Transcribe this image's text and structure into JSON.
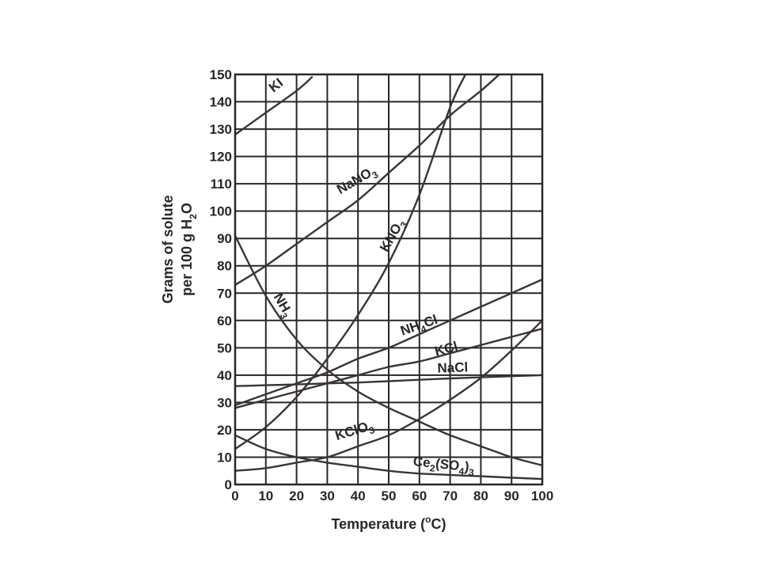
{
  "chart_data": {
    "type": "line",
    "xlabel": "Temperature (°C)",
    "xlabel_parts": {
      "pre": "Temperature (",
      "sup": "o",
      "post": "C)"
    },
    "ylabel_line1": "Grams of solute",
    "ylabel_line2": {
      "pre": "per 100 g H",
      "sub": "2",
      "post": "O"
    },
    "xlim": [
      0,
      100
    ],
    "ylim": [
      0,
      150
    ],
    "x_ticks": [
      0,
      10,
      20,
      30,
      40,
      50,
      60,
      70,
      80,
      90,
      100
    ],
    "y_ticks": [
      0,
      10,
      20,
      30,
      40,
      50,
      60,
      70,
      80,
      90,
      100,
      110,
      120,
      130,
      140,
      150
    ],
    "grid": true,
    "series": [
      {
        "name": "KI",
        "label_parts": [
          {
            "t": "KI"
          }
        ],
        "x": [
          0,
          10,
          20,
          25
        ],
        "y": [
          128,
          136,
          144,
          149
        ]
      },
      {
        "name": "NaNO3",
        "label_parts": [
          {
            "t": "NaNO"
          },
          {
            "t": "3",
            "sub": true
          }
        ],
        "x": [
          0,
          10,
          20,
          30,
          40,
          50,
          60,
          70,
          80,
          86
        ],
        "y": [
          73,
          80,
          88,
          96,
          104,
          114,
          124,
          135,
          144,
          150
        ]
      },
      {
        "name": "KNO3",
        "label_parts": [
          {
            "t": "KNO"
          },
          {
            "t": "3",
            "sub": true
          }
        ],
        "x": [
          0,
          10,
          20,
          30,
          40,
          50,
          60,
          70,
          75
        ],
        "y": [
          13,
          21,
          32,
          46,
          62,
          81,
          106,
          138,
          150
        ]
      },
      {
        "name": "NH3",
        "label_parts": [
          {
            "t": "NH"
          },
          {
            "t": "3",
            "sub": true
          }
        ],
        "x": [
          0,
          10,
          20,
          30,
          40,
          50,
          60,
          70,
          80,
          90,
          100
        ],
        "y": [
          91,
          69,
          53,
          42,
          34,
          28,
          23,
          18,
          14,
          10,
          7
        ]
      },
      {
        "name": "NH4Cl",
        "label_parts": [
          {
            "t": "NH"
          },
          {
            "t": "4",
            "sub": true
          },
          {
            "t": "Cl"
          }
        ],
        "x": [
          0,
          10,
          20,
          30,
          40,
          50,
          60,
          70,
          80,
          90,
          100
        ],
        "y": [
          29,
          33,
          37,
          41,
          46,
          50,
          55,
          60,
          65,
          70,
          75
        ]
      },
      {
        "name": "KCl",
        "label_parts": [
          {
            "t": "KCl"
          }
        ],
        "x": [
          0,
          10,
          20,
          30,
          40,
          50,
          60,
          70,
          80,
          90,
          100
        ],
        "y": [
          28,
          31,
          34,
          37,
          40,
          43,
          45,
          48,
          51,
          54,
          57
        ]
      },
      {
        "name": "NaCl",
        "label_parts": [
          {
            "t": "NaCl"
          }
        ],
        "x": [
          0,
          10,
          20,
          30,
          40,
          50,
          60,
          70,
          80,
          90,
          100
        ],
        "y": [
          36,
          36.3,
          36.6,
          37,
          37.3,
          37.8,
          38.3,
          38.8,
          39.2,
          39.6,
          40
        ]
      },
      {
        "name": "KClO3",
        "label_parts": [
          {
            "t": "KClO"
          },
          {
            "t": "3",
            "sub": true
          }
        ],
        "x": [
          0,
          10,
          20,
          30,
          40,
          50,
          60,
          70,
          80,
          90,
          100
        ],
        "y": [
          5,
          6,
          8,
          10,
          14,
          18,
          24,
          31,
          39,
          49,
          60
        ]
      },
      {
        "name": "Ce2(SO4)3",
        "label_parts": [
          {
            "t": "Ce"
          },
          {
            "t": "2",
            "sub": true
          },
          {
            "t": "(SO"
          },
          {
            "t": "4",
            "sub": true
          },
          {
            "t": ")"
          },
          {
            "t": "3",
            "sub": true
          }
        ],
        "x": [
          0,
          10,
          20,
          30,
          40,
          50,
          60,
          70,
          80,
          90,
          100
        ],
        "y": [
          18,
          13,
          10,
          8,
          6.5,
          5,
          4,
          3.5,
          3,
          2.5,
          2
        ]
      }
    ]
  }
}
